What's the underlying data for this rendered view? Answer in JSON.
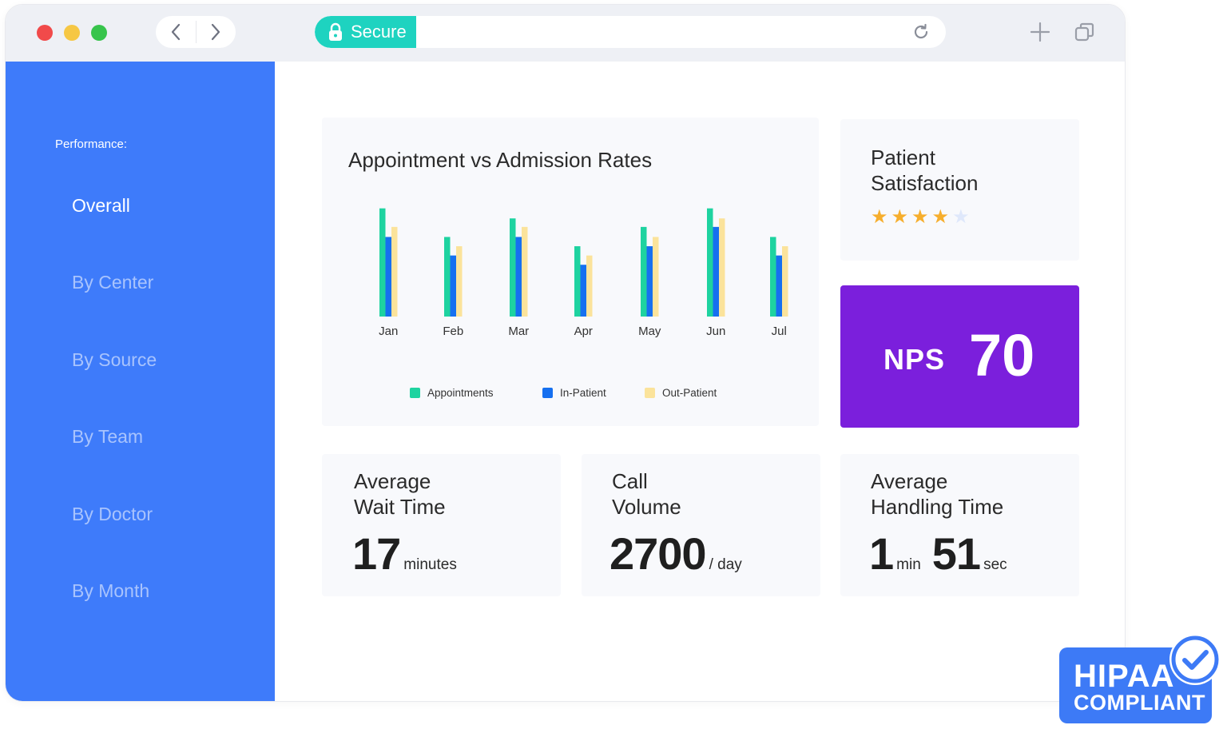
{
  "browser": {
    "secure_label": "Secure"
  },
  "sidebar": {
    "section_label": "Performance:",
    "items": [
      {
        "label": "Overall",
        "active": true
      },
      {
        "label": "By Center",
        "active": false
      },
      {
        "label": "By Source",
        "active": false
      },
      {
        "label": "By Team",
        "active": false
      },
      {
        "label": "By Doctor",
        "active": false
      },
      {
        "label": "By Month",
        "active": false
      }
    ]
  },
  "chart_data": {
    "type": "bar",
    "title": "Appointment vs Admission Rates",
    "categories": [
      "Jan",
      "Feb",
      "Mar",
      "Apr",
      "May",
      "Jun",
      "Jul"
    ],
    "series": [
      {
        "name": "Appointments",
        "color": "#1ed3a0",
        "values": [
          140,
          103,
          127,
          91,
          116,
          140,
          103
        ]
      },
      {
        "name": "In-Patient",
        "color": "#1670f0",
        "values": [
          103,
          79,
          103,
          67,
          91,
          116,
          79
        ]
      },
      {
        "name": "Out-Patient",
        "color": "#fbe39b",
        "values": [
          116,
          91,
          116,
          79,
          103,
          127,
          91
        ]
      }
    ],
    "ylim": [
      0,
      150
    ],
    "grid": false,
    "legend_position": "bottom"
  },
  "satisfaction": {
    "title_line1": "Patient",
    "title_line2": "Satisfaction",
    "rating": 4,
    "max_rating": 5
  },
  "nps": {
    "label": "NPS",
    "value": "70"
  },
  "metrics": {
    "wait": {
      "title_line1": "Average",
      "title_line2": "Wait Time",
      "value": "17",
      "unit": "minutes"
    },
    "calls": {
      "title_line1": "Call",
      "title_line2": "Volume",
      "value": "2700",
      "unit": "/ day"
    },
    "handling": {
      "title_line1": "Average",
      "title_line2": "Handling Time",
      "value1": "1",
      "unit1": "min",
      "value2": "51",
      "unit2": "sec"
    }
  },
  "badge": {
    "line1": "HIPAA",
    "line2": "COMPLIANT",
    "color": "#3d7af6"
  },
  "colors": {
    "sidebar": "#3e7bfa",
    "accent_secure": "#1ed3c0",
    "nps_bg": "#7b1fdc",
    "star": "#f6ae2d"
  }
}
